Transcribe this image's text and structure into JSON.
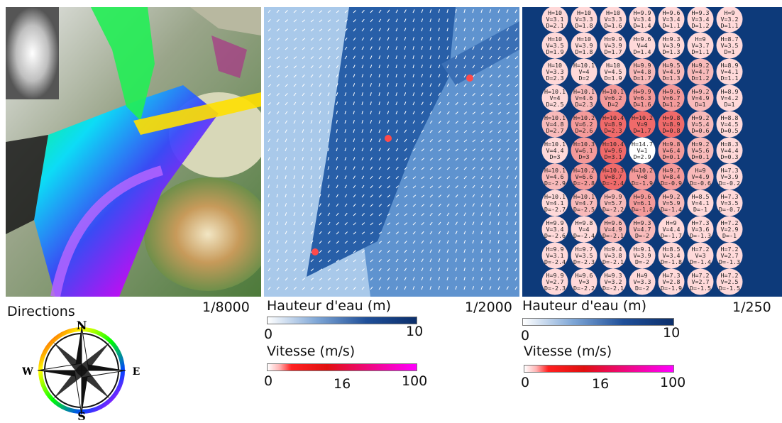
{
  "panels": {
    "directions": {
      "title": "Directions",
      "scale": "1/8000"
    },
    "middle": {
      "scale": "1/2000",
      "depth_title": "Hauteur d'eau (m)",
      "depth_min": "0",
      "depth_max": "10",
      "speed_title": "Vitesse (m/s)",
      "speed_min": "0",
      "speed_mid": "16",
      "speed_max": "100"
    },
    "right": {
      "scale": "1/250",
      "depth_title": "Hauteur d'eau (m)",
      "depth_min": "0",
      "depth_max": "10",
      "speed_title": "Vitesse (m/s)",
      "speed_min": "0",
      "speed_mid": "16",
      "speed_max": "100"
    }
  },
  "compass": {
    "north": "N",
    "south": "S",
    "east": "E",
    "west": "W"
  },
  "colors": {
    "depth_dark": "#0c2f6b",
    "depth_light": "#ffffff",
    "speed_low": "#ffffff",
    "speed_mid": "#ff2020",
    "speed_high": "#ff00ff"
  },
  "grid_cells": [
    [
      "H=10 V=3.1 D=2.1",
      "H=10 V=3.3 D=1.8",
      "H=10 V=3.3 D=1.6",
      "H=9.9 V=3.4 D=1.4",
      "H=9.6 V=3.4 D=1.1",
      "H=9.3 V=3.4 D=1.2",
      "H=9 V=3.2 D=1.1"
    ],
    [
      "H=10 V=3.5 D=1.9",
      "H=10 V=3.9 D=1.8",
      "H=9.9 V=3.9 D=1.7",
      "H=9.6 V=4 D=1.4",
      "H=9.3 V=3.9 D=1.3",
      "H=9 V=3.7 D=1.1",
      "H=8.7 V=3.5 D=1"
    ],
    [
      "H=10 V=3.3 D=2.3",
      "H=10.1 V=4 D=2",
      "H=10 V=4.5 D=1.9",
      "H=9.9 V=4.8 D=1.7",
      "H=9.5 V=4.9 D=1.3",
      "H=9.2 V=4.7 D=1.2",
      "H=8.9 V=4.1 D=1.1"
    ],
    [
      "H=10.1 V=4 D=2.5",
      "H=10.1 V=4.6 D=2.3",
      "H=10.1 V=6.2 D=2",
      "H=9.9 V=6.3 D=1.6",
      "H=9.6 V=6.7 D=1.2",
      "H=9.2 V=4.9 D=1",
      "H=8.9 V=4.2 D=1"
    ],
    [
      "H=10.1 V=4.8 D=2.7",
      "H=10.2 V=6.2 D=2.6",
      "H=10.4 V=8.9 D=2.3",
      "H=10.2 V=9 D=1.7",
      "H=9.8 V=8.9 D=0.8",
      "H=9.2 V=5.4 D=0.6",
      "H=8.8 V=4.5 D=0.5"
    ],
    [
      "H=10.1 V=4.4 D=3",
      "H=10.3 V=6.1 D=3",
      "H=10.4 V=9.6 D=3.1",
      "H=14.7 V=1 D=2.9",
      "H=9.8 V=6.4 D=0.1",
      "H=9.2 V=5.6 D=0.1",
      "H=8.3 V=4.4 D=0.3"
    ],
    [
      "H=10.1 V=4.6 D=-2.9",
      "H=10.2 V=6.6 D=-2.8",
      "H=10.3 V=8.7 D=-2.4",
      "H=10.2 V=8 D=-1.9",
      "H=9.7 V=8.4 D=-0.9",
      "H=9 V=4.9 D=-0.6",
      "H=7.3 V=3.9 D=-0.2"
    ],
    [
      "H=10.1 V=4.1 D=-2.7",
      "H=10.1 V=4.7 D=-2.5",
      "H=9.9 V=5.7 D=-2.2",
      "H=9.6 V=6.1 D=-1.8",
      "H=9.2 V=5.9 D=-1.4",
      "H=8.5 V=4.1 D=-1",
      "H=7.3 V=3.5 D=-0.7"
    ],
    [
      "H=9.9 V=3.4 D=-2.6",
      "H=9.8 V=4 D=-2.4",
      "H=9.6 V=4.9 D=-2.1",
      "H=9.3 V=4.7 D=-2",
      "H=9 V=4.4 D=-1.7",
      "H=7.3 V=3.6 D=-1.3",
      "H=7.2 V=2.9 D=-1"
    ],
    [
      "H=9.9 V=3.1 D=-2.4",
      "H=9.7 V=3.5 D=-2.3",
      "H=9.4 V=3.8 D=-2.1",
      "H=9.1 V=3.9 D=-2",
      "H=8.5 V=3.4 D=-1.8",
      "H=7.2 V=3 D=-1.4",
      "H=7.2 V=2.7 D=-1.3"
    ],
    [
      "H=9.9 V=2.7 D=-2.3",
      "H=9.6 V=3 D=-2.2",
      "H=9.3 V=3.2 D=-2.1",
      "H=9 V=3.3 D=-2",
      "H=7.3 V=2.8 D=-1.9",
      "H=7.2 V=2.7 D=-1.5",
      "H=7.2 V=2.5 D=-1.5"
    ]
  ]
}
